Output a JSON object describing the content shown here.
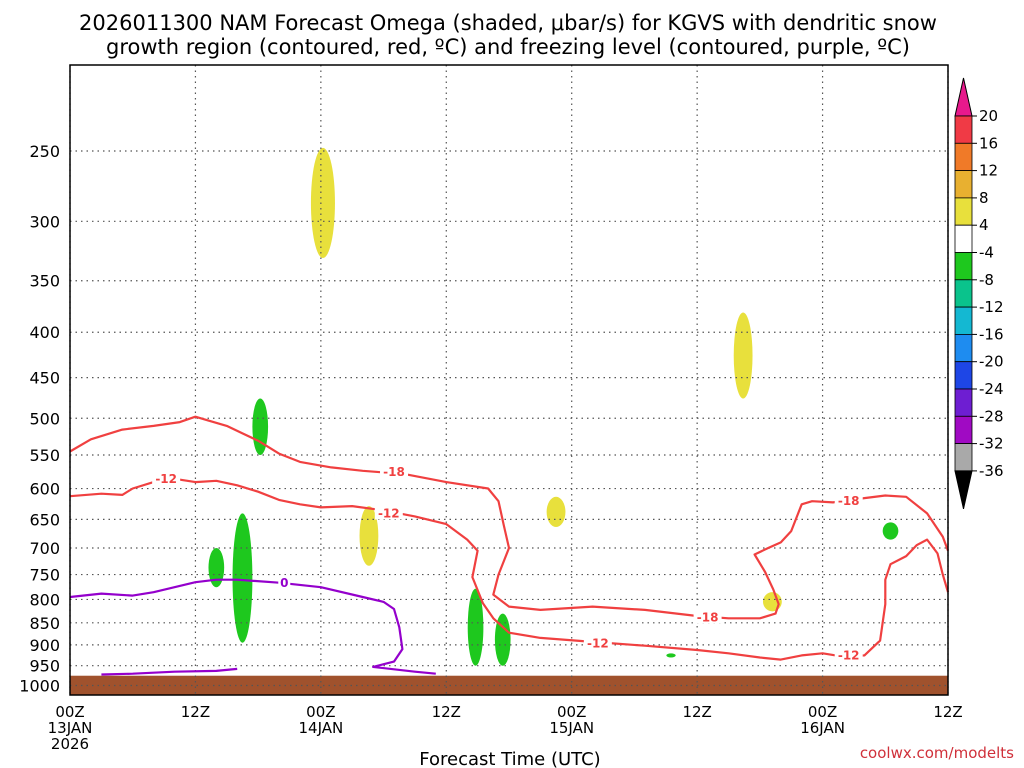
{
  "chart_data": {
    "type": "heatmap",
    "title_lines": [
      "2026011300 NAM Forecast Omega (shaded, μbar/s) for KGVS with dendritic snow",
      "growth region (contoured, red, ºC) and freezing level (contoured, purple, ºC)"
    ],
    "xlabel": "Forecast Time (UTC)",
    "credit": "coolwx.com/modelts",
    "x_range_hours": [
      0,
      84
    ],
    "y_range_hpa": [
      200,
      1025
    ],
    "y_scale": "log",
    "x_ticks": [
      {
        "hour": 0,
        "line1": "00Z",
        "line2": "13JAN",
        "line3": "2026"
      },
      {
        "hour": 12,
        "line1": "12Z",
        "line2": "",
        "line3": ""
      },
      {
        "hour": 24,
        "line1": "00Z",
        "line2": "14JAN",
        "line3": ""
      },
      {
        "hour": 36,
        "line1": "12Z",
        "line2": "",
        "line3": ""
      },
      {
        "hour": 48,
        "line1": "00Z",
        "line2": "15JAN",
        "line3": ""
      },
      {
        "hour": 60,
        "line1": "12Z",
        "line2": "",
        "line3": ""
      },
      {
        "hour": 72,
        "line1": "00Z",
        "line2": "16JAN",
        "line3": ""
      },
      {
        "hour": 84,
        "line1": "12Z",
        "line2": "",
        "line3": ""
      }
    ],
    "y_ticks": [
      "250",
      "300",
      "350",
      "400",
      "450",
      "500",
      "550",
      "600",
      "650",
      "700",
      "750",
      "800",
      "850",
      "900",
      "950",
      "1000"
    ],
    "colorbar": {
      "labels": [
        "20",
        "16",
        "12",
        "8",
        "4",
        "-4",
        "-8",
        "-12",
        "-16",
        "-20",
        "-24",
        "-28",
        "-32",
        "-36"
      ],
      "colors": [
        "#e8198c",
        "#f03a45",
        "#f07a28",
        "#e8b030",
        "#e8e03c",
        "#ffffff",
        "#1ec81e",
        "#0ac38c",
        "#14b8d2",
        "#1e8cf0",
        "#1e46e6",
        "#6e1ed2",
        "#a00ac3",
        "#a9a9a9",
        "#000000"
      ]
    },
    "omega_areas": [
      {
        "id": "yellow-upper",
        "class": "4 to 8",
        "color": "#e8e03c",
        "center_hour": 24.2,
        "p_top": 248,
        "p_bottom": 330
      },
      {
        "id": "yellow-mid-right",
        "class": "4 to 8",
        "color": "#e8e03c",
        "center_hour": 64.4,
        "p_top": 380,
        "p_bottom": 475
      },
      {
        "id": "yellow-small",
        "class": "4 to 8",
        "color": "#e8e03c",
        "center_hour": 46.5,
        "p_top": 613,
        "p_bottom": 663
      },
      {
        "id": "yellow-lower-a",
        "class": "4 to 8",
        "color": "#e8e03c",
        "center_hour": 28.6,
        "p_top": 628,
        "p_bottom": 733
      },
      {
        "id": "yellow-lower-b",
        "class": "4 to 8",
        "color": "#e8e03c",
        "center_hour": 67.2,
        "p_top": 785,
        "p_bottom": 825
      },
      {
        "id": "green-a",
        "class": "-4 to -8",
        "color": "#1ec81e",
        "center_hour": 18.2,
        "p_top": 475,
        "p_bottom": 550
      },
      {
        "id": "green-b",
        "class": "-4 to -8",
        "color": "#1ec81e",
        "center_hour": 14.0,
        "p_top": 700,
        "p_bottom": 775
      },
      {
        "id": "green-c",
        "class": "-4 to -8",
        "color": "#1ec81e",
        "center_hour": 16.5,
        "p_top": 640,
        "p_bottom": 895
      },
      {
        "id": "green-d",
        "class": "-4 to -8",
        "color": "#1ec81e",
        "center_hour": 38.8,
        "p_top": 778,
        "p_bottom": 950
      },
      {
        "id": "green-e",
        "class": "-4 to -8",
        "color": "#1ec81e",
        "center_hour": 41.4,
        "p_top": 830,
        "p_bottom": 950
      },
      {
        "id": "green-f",
        "class": "-4 to -8",
        "color": "#1ec81e",
        "center_hour": 78.5,
        "p_top": 655,
        "p_bottom": 685
      },
      {
        "id": "green-g",
        "class": "-4 to -8",
        "color": "#1ec81e",
        "center_hour": 57.5,
        "p_top": 920,
        "p_bottom": 930
      }
    ],
    "contours": [
      {
        "id": "dgz-minus18",
        "color": "#f04040",
        "label": "-18",
        "points": [
          [
            0,
            545
          ],
          [
            2,
            528
          ],
          [
            5,
            515
          ],
          [
            8,
            510
          ],
          [
            10.5,
            505
          ],
          [
            12,
            498
          ],
          [
            13,
            502
          ],
          [
            15,
            510
          ],
          [
            16.5,
            520
          ],
          [
            18,
            530
          ],
          [
            20,
            548
          ],
          [
            22,
            560
          ],
          [
            25,
            568
          ],
          [
            28,
            573
          ],
          [
            32,
            578
          ],
          [
            36,
            590
          ],
          [
            40,
            600
          ],
          [
            41,
            620
          ],
          [
            41.5,
            660
          ],
          [
            42,
            700
          ],
          [
            41,
            750
          ],
          [
            40.5,
            790
          ],
          [
            42,
            815
          ],
          [
            45,
            822
          ],
          [
            50,
            815
          ],
          [
            55,
            822
          ],
          [
            60,
            835
          ],
          [
            63,
            840
          ],
          [
            66,
            840
          ],
          [
            67.5,
            830
          ],
          [
            67.8,
            810
          ],
          [
            67.3,
            780
          ],
          [
            66.5,
            745
          ],
          [
            65.5,
            712
          ],
          [
            66.8,
            700
          ],
          [
            68,
            690
          ],
          [
            69,
            670
          ],
          [
            70,
            625
          ],
          [
            71,
            620
          ],
          [
            73,
            622
          ],
          [
            76,
            615
          ],
          [
            78,
            611
          ],
          [
            80,
            613
          ],
          [
            82,
            640
          ],
          [
            83.5,
            680
          ],
          [
            84,
            705
          ]
        ]
      },
      {
        "id": "dgz-minus12",
        "color": "#f04040",
        "label": "-12",
        "points": [
          [
            0,
            612
          ],
          [
            3,
            608
          ],
          [
            5,
            610
          ],
          [
            6,
            600
          ],
          [
            8,
            590
          ],
          [
            10,
            585
          ],
          [
            12,
            590
          ],
          [
            14,
            588
          ],
          [
            16,
            595
          ],
          [
            18,
            605
          ],
          [
            20,
            618
          ],
          [
            22,
            625
          ],
          [
            24,
            630
          ],
          [
            27,
            628
          ],
          [
            30,
            635
          ],
          [
            33,
            645
          ],
          [
            36,
            658
          ],
          [
            38,
            685
          ],
          [
            39,
            705
          ],
          [
            38.5,
            755
          ],
          [
            39.5,
            808
          ],
          [
            40.5,
            840
          ],
          [
            42,
            872
          ],
          [
            45,
            884
          ],
          [
            50,
            893
          ],
          [
            55,
            902
          ],
          [
            60,
            912
          ],
          [
            63,
            920
          ],
          [
            66,
            930
          ],
          [
            68,
            935
          ],
          [
            70,
            925
          ],
          [
            72,
            920
          ],
          [
            74,
            928
          ],
          [
            76,
            925
          ],
          [
            77.5,
            890
          ],
          [
            78,
            810
          ],
          [
            78,
            760
          ],
          [
            78.5,
            730
          ],
          [
            80,
            715
          ],
          [
            81,
            695
          ],
          [
            82,
            685
          ],
          [
            83,
            710
          ],
          [
            83.5,
            750
          ],
          [
            84,
            785
          ]
        ]
      },
      {
        "id": "freezing-0",
        "color": "#9400cc",
        "label": "0",
        "points": [
          [
            0,
            795
          ],
          [
            3,
            788
          ],
          [
            6,
            792
          ],
          [
            8,
            785
          ],
          [
            10,
            775
          ],
          [
            12,
            765
          ],
          [
            14,
            760
          ],
          [
            16,
            760
          ],
          [
            20,
            766
          ],
          [
            24,
            775
          ],
          [
            28,
            795
          ],
          [
            30,
            805
          ],
          [
            31,
            820
          ],
          [
            31.5,
            860
          ],
          [
            31.8,
            910
          ],
          [
            31,
            940
          ],
          [
            29,
            953
          ],
          [
            33,
            965
          ],
          [
            35,
            970
          ]
        ]
      },
      {
        "id": "freezing-0-lower",
        "color": "#9400cc",
        "label": "",
        "points": [
          [
            3,
            972
          ],
          [
            6,
            970
          ],
          [
            10,
            965
          ],
          [
            14,
            963
          ],
          [
            16,
            958
          ]
        ]
      }
    ],
    "contour_labels": [
      {
        "text": "-12",
        "hour": 9.2,
        "p": 585,
        "color": "#f04040"
      },
      {
        "text": "-18",
        "hour": 31.0,
        "p": 575,
        "color": "#f04040"
      },
      {
        "text": "-12",
        "hour": 30.5,
        "p": 640,
        "color": "#f04040"
      },
      {
        "text": "-18",
        "hour": 61.0,
        "p": 838,
        "color": "#f04040"
      },
      {
        "text": "-12",
        "hour": 50.5,
        "p": 897,
        "color": "#f04040"
      },
      {
        "text": "-18",
        "hour": 74.5,
        "p": 620,
        "color": "#f04040"
      },
      {
        "text": "-12",
        "hour": 74.5,
        "p": 925,
        "color": "#f04040"
      },
      {
        "text": "0",
        "hour": 20.5,
        "p": 767,
        "color": "#9400cc"
      }
    ],
    "ground_color": "#a0522d",
    "ground_p": 975
  }
}
